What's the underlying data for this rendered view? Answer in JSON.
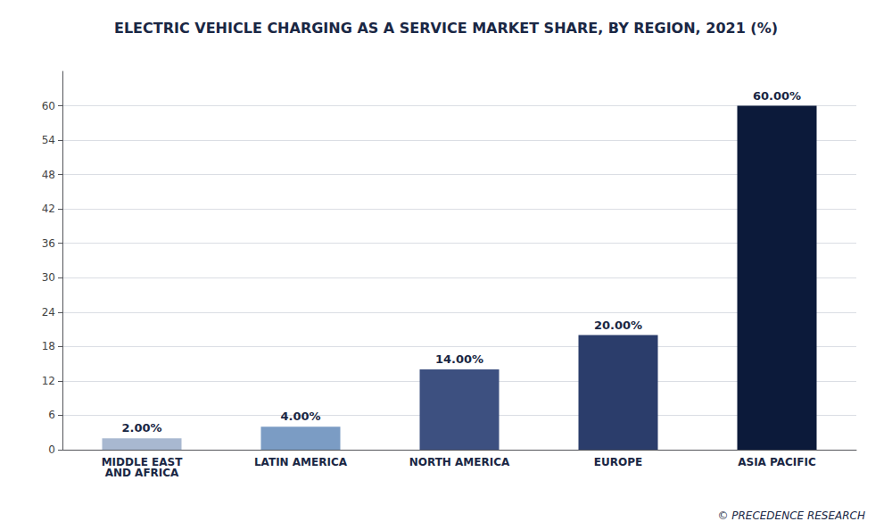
{
  "chart_data": {
    "type": "bar",
    "title": "ELECTRIC VEHICLE CHARGING AS A SERVICE MARKET SHARE, BY REGION, 2021 (%)",
    "categories": [
      "MIDDLE EAST\nAND AFRICA",
      "LATIN AMERICA",
      "NORTH AMERICA",
      "EUROPE",
      "ASIA PACIFIC"
    ],
    "values": [
      2.0,
      4.0,
      14.0,
      20.0,
      60.0
    ],
    "value_labels": [
      "2.00%",
      "4.00%",
      "14.00%",
      "20.00%",
      "60.00%"
    ],
    "colors": [
      "#a8b8d0",
      "#7b9cc4",
      "#3d5080",
      "#2b3d6b",
      "#0c1a3a"
    ],
    "ylim": [
      0,
      66
    ],
    "yticks": [
      0,
      6,
      12,
      18,
      24,
      30,
      36,
      42,
      48,
      54,
      60
    ],
    "grid": true,
    "data_labels": true,
    "annotations": [
      "© PRECEDENCE RESEARCH"
    ]
  }
}
